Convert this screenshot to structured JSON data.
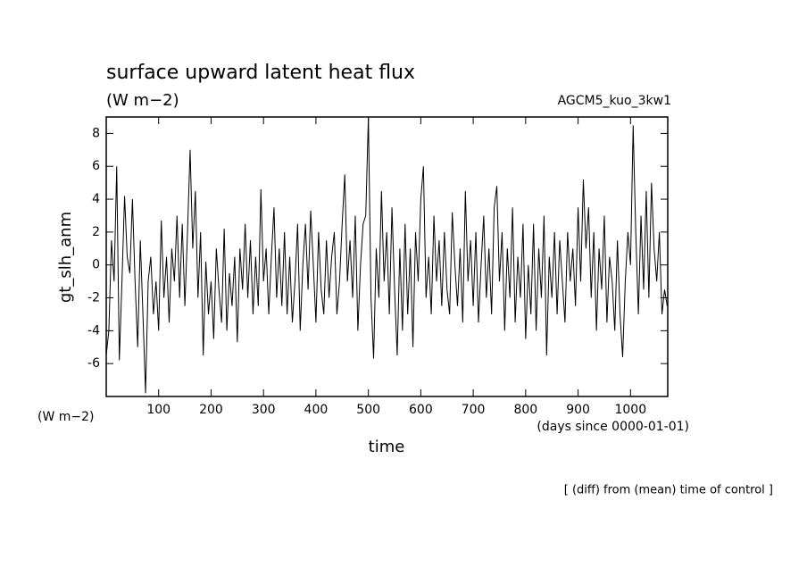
{
  "chart_data": {
    "type": "line",
    "title": "surface upward latent heat flux",
    "subtitle": "(W m−2)",
    "annotation": "AGCM5_kuo_3kw1",
    "y_label": "gt_slh_anm",
    "y_unit": "(W m−2)",
    "x_label": "time",
    "x_unit": "(days since 0000-01-01)",
    "footer": "[ (diff) from (mean) time of control ]",
    "xlim": [
      0,
      1071
    ],
    "ylim": [
      -8,
      9
    ],
    "xticks": [
      100,
      200,
      300,
      400,
      500,
      600,
      700,
      800,
      900,
      1000
    ],
    "yticks": [
      -6,
      -4,
      -2,
      0,
      2,
      4,
      6,
      8
    ],
    "x": [
      0,
      5,
      10,
      15,
      20,
      25,
      30,
      35,
      40,
      45,
      50,
      55,
      60,
      65,
      70,
      75,
      80,
      85,
      90,
      95,
      100,
      105,
      110,
      115,
      120,
      125,
      130,
      135,
      140,
      145,
      150,
      155,
      160,
      165,
      170,
      175,
      180,
      185,
      190,
      195,
      200,
      205,
      210,
      215,
      220,
      225,
      230,
      235,
      240,
      245,
      250,
      255,
      260,
      265,
      270,
      275,
      280,
      285,
      290,
      295,
      300,
      305,
      310,
      315,
      320,
      325,
      330,
      335,
      340,
      345,
      350,
      355,
      360,
      365,
      370,
      375,
      380,
      385,
      390,
      395,
      400,
      405,
      410,
      415,
      420,
      425,
      430,
      435,
      440,
      445,
      450,
      455,
      460,
      465,
      470,
      475,
      480,
      485,
      490,
      495,
      500,
      505,
      510,
      515,
      520,
      525,
      530,
      535,
      540,
      545,
      550,
      555,
      560,
      565,
      570,
      575,
      580,
      585,
      590,
      595,
      600,
      605,
      610,
      615,
      620,
      625,
      630,
      635,
      640,
      645,
      650,
      655,
      660,
      665,
      670,
      675,
      680,
      685,
      690,
      695,
      700,
      705,
      710,
      715,
      720,
      725,
      730,
      735,
      740,
      745,
      750,
      755,
      760,
      765,
      770,
      775,
      780,
      785,
      790,
      795,
      800,
      805,
      810,
      815,
      820,
      825,
      830,
      835,
      840,
      845,
      850,
      855,
      860,
      865,
      870,
      875,
      880,
      885,
      890,
      895,
      900,
      905,
      910,
      915,
      920,
      925,
      930,
      935,
      940,
      945,
      950,
      955,
      960,
      965,
      970,
      975,
      980,
      985,
      990,
      995,
      1000,
      1005,
      1010,
      1015,
      1020,
      1025,
      1030,
      1035,
      1040,
      1045,
      1050,
      1055,
      1060,
      1065,
      1070
    ],
    "series": [
      {
        "color": "#000000",
        "values": [
          -5.5,
          -4,
          1.5,
          -1,
          6,
          -5.8,
          -1,
          4.2,
          0.5,
          -0.5,
          4,
          -1,
          -5,
          1.5,
          -3,
          -7.8,
          -1,
          0.5,
          -3,
          -1,
          -4,
          2.7,
          -2,
          0.5,
          -3.5,
          1,
          -1,
          3,
          -2,
          2.5,
          -2.5,
          2,
          7,
          1,
          4.5,
          -2,
          2,
          -5.5,
          0.2,
          -3,
          -1,
          -4.5,
          1,
          -1.5,
          -3.5,
          2.2,
          -4,
          -0.5,
          -2.5,
          0.5,
          -4.7,
          1,
          -1.5,
          2.5,
          -2,
          1.5,
          -3,
          0.5,
          -2.5,
          4.6,
          -1,
          1,
          -3,
          0.5,
          3.5,
          -2,
          1,
          -2.5,
          2,
          -3,
          0.5,
          -3.5,
          -1,
          2.5,
          -4,
          0,
          2.5,
          -1.5,
          3.3,
          0,
          -3.5,
          2,
          -1.5,
          -3,
          1.5,
          -2,
          0.5,
          2,
          -3,
          -1,
          2.5,
          5.5,
          -1,
          1.5,
          -2,
          3,
          -4,
          0,
          2.5,
          3,
          9,
          -2,
          -5.7,
          1,
          -2,
          4.5,
          -1,
          2,
          -3,
          3.5,
          -1.5,
          -5.5,
          1,
          -4,
          2.5,
          -3,
          1,
          -5,
          2,
          -1,
          4,
          6,
          -2,
          0.5,
          -3,
          3,
          -1,
          1.5,
          -2.5,
          2,
          -1.5,
          -3,
          3.2,
          0,
          -2.5,
          1,
          -3.5,
          4.5,
          -1,
          1.5,
          -2.5,
          2,
          -3.5,
          0,
          3,
          -2,
          1,
          -3,
          3.5,
          4.8,
          -1,
          2,
          -4,
          1,
          -2,
          3.5,
          -3.5,
          0.5,
          -2,
          2.5,
          -4.5,
          0,
          -3,
          2.5,
          -4,
          1,
          -2,
          3,
          -5.5,
          0.5,
          -2,
          2,
          -3,
          1.5,
          -1,
          -3.5,
          2,
          -1,
          1,
          -2.5,
          3.5,
          -1,
          5.2,
          1,
          3.5,
          -2,
          2,
          -4,
          1,
          -1.5,
          3,
          -3.5,
          0.5,
          -1,
          -4,
          1.5,
          -3,
          -5.6,
          -1,
          2,
          0,
          8.5,
          2,
          -3,
          3,
          -1.5,
          4.5,
          -2,
          5,
          1,
          -1,
          2,
          -3,
          -1.5,
          -2.5
        ]
      }
    ]
  }
}
